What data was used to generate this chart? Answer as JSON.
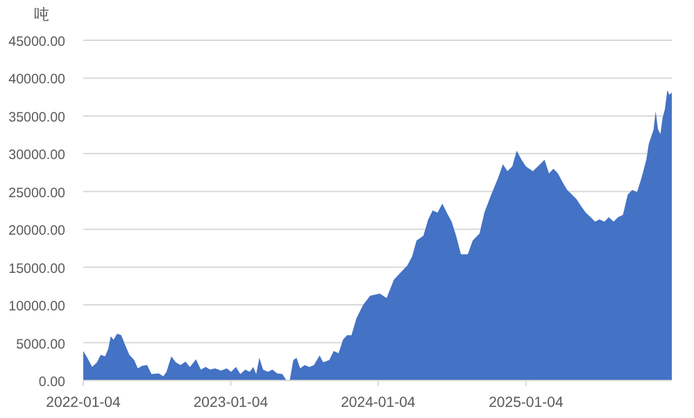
{
  "chart_data": {
    "type": "area",
    "ylabel": "吨",
    "color": "#4472c4",
    "grid": "y",
    "xlim": [
      "2022-01-04",
      "2025-12-31"
    ],
    "xticks": [
      "2022-01-04",
      "2023-01-04",
      "2024-01-04",
      "2025-01-04"
    ],
    "ylim": [
      0,
      45000
    ],
    "yticks": [
      {
        "value": 0,
        "label": "0.00"
      },
      {
        "value": 5000,
        "label": "5000.00"
      },
      {
        "value": 10000,
        "label": "10000.00"
      },
      {
        "value": 15000,
        "label": "15000.00"
      },
      {
        "value": 20000,
        "label": "20000.00"
      },
      {
        "value": 25000,
        "label": "25000.00"
      },
      {
        "value": 30000,
        "label": "30000.00"
      },
      {
        "value": 35000,
        "label": "35000.00"
      },
      {
        "value": 40000,
        "label": "40000.00"
      },
      {
        "value": 45000,
        "label": "45000.00"
      }
    ],
    "x": [
      "2022-01-04",
      "2022-01-14",
      "2022-01-26",
      "2022-02-07",
      "2022-02-16",
      "2022-02-27",
      "2022-03-07",
      "2022-03-13",
      "2022-03-20",
      "2022-03-29",
      "2022-04-08",
      "2022-04-17",
      "2022-04-28",
      "2022-05-10",
      "2022-05-19",
      "2022-05-30",
      "2022-06-11",
      "2022-06-22",
      "2022-07-10",
      "2022-07-21",
      "2022-07-29",
      "2022-08-10",
      "2022-08-21",
      "2022-09-02",
      "2022-09-14",
      "2022-09-25",
      "2022-10-10",
      "2022-10-22",
      "2022-11-03",
      "2022-11-14",
      "2022-11-26",
      "2022-12-11",
      "2022-12-25",
      "2023-01-05",
      "2023-01-17",
      "2023-01-28",
      "2023-02-09",
      "2023-02-20",
      "2023-03-01",
      "2023-03-08",
      "2023-03-16",
      "2023-03-25",
      "2023-04-06",
      "2023-04-17",
      "2023-04-29",
      "2023-05-12",
      "2023-05-21",
      "2023-05-30",
      "2023-06-08",
      "2023-06-16",
      "2023-06-25",
      "2023-07-06",
      "2023-07-18",
      "2023-07-29",
      "2023-08-12",
      "2023-08-21",
      "2023-09-05",
      "2023-09-16",
      "2023-09-28",
      "2023-10-09",
      "2023-10-19",
      "2023-10-30",
      "2023-11-11",
      "2023-11-28",
      "2023-12-15",
      "2024-01-08",
      "2024-01-25",
      "2024-02-12",
      "2024-02-29",
      "2024-03-16",
      "2024-03-28",
      "2024-04-08",
      "2024-04-25",
      "2024-05-07",
      "2024-05-18",
      "2024-05-30",
      "2024-06-11",
      "2024-06-22",
      "2024-07-04",
      "2024-07-15",
      "2024-07-27",
      "2024-08-13",
      "2024-08-25",
      "2024-09-11",
      "2024-09-23",
      "2024-10-10",
      "2024-10-27",
      "2024-11-08",
      "2024-11-19",
      "2024-12-01",
      "2024-12-12",
      "2024-12-24",
      "2025-01-04",
      "2025-01-21",
      "2025-02-08",
      "2025-02-19",
      "2025-03-02",
      "2025-03-13",
      "2025-03-24",
      "2025-04-05",
      "2025-04-16",
      "2025-04-28",
      "2025-05-09",
      "2025-05-20",
      "2025-06-01",
      "2025-06-13",
      "2025-06-24",
      "2025-07-05",
      "2025-07-17",
      "2025-07-28",
      "2025-08-09",
      "2025-08-20",
      "2025-09-01",
      "2025-09-13",
      "2025-09-24",
      "2025-10-06",
      "2025-10-17",
      "2025-10-29",
      "2025-11-04",
      "2025-11-16",
      "2025-11-21",
      "2025-11-27",
      "2025-12-03",
      "2025-12-08",
      "2025-12-14",
      "2025-12-20",
      "2025-12-25",
      "2025-12-31"
    ],
    "values": [
      3900,
      3000,
      1800,
      2400,
      3400,
      3200,
      4200,
      5850,
      5400,
      6200,
      6000,
      4800,
      3400,
      2700,
      1600,
      1950,
      2050,
      850,
      950,
      550,
      1150,
      3200,
      2400,
      2050,
      2500,
      1800,
      2800,
      1450,
      1800,
      1450,
      1600,
      1300,
      1600,
      1150,
      1800,
      850,
      1450,
      1150,
      1800,
      850,
      3000,
      1450,
      1150,
      1450,
      950,
      850,
      100,
      0,
      2700,
      3000,
      1600,
      2050,
      1800,
      2050,
      3300,
      2400,
      2700,
      3900,
      3600,
      5400,
      6000,
      6000,
      8200,
      10000,
      11200,
      11500,
      10900,
      13350,
      14300,
      15200,
      16400,
      18500,
      19150,
      21300,
      22500,
      22200,
      23400,
      22200,
      21000,
      19150,
      16700,
      16700,
      18500,
      19450,
      22200,
      24600,
      26800,
      28600,
      27700,
      28300,
      30400,
      29200,
      28300,
      27700,
      28600,
      29200,
      27400,
      28000,
      27400,
      26200,
      25200,
      24600,
      24000,
      23100,
      22200,
      21600,
      21000,
      21300,
      21000,
      21600,
      21000,
      21600,
      21900,
      24600,
      25200,
      24900,
      26800,
      29200,
      31300,
      33200,
      35600,
      33200,
      32600,
      34700,
      35900,
      38400,
      37800,
      38100
    ]
  }
}
